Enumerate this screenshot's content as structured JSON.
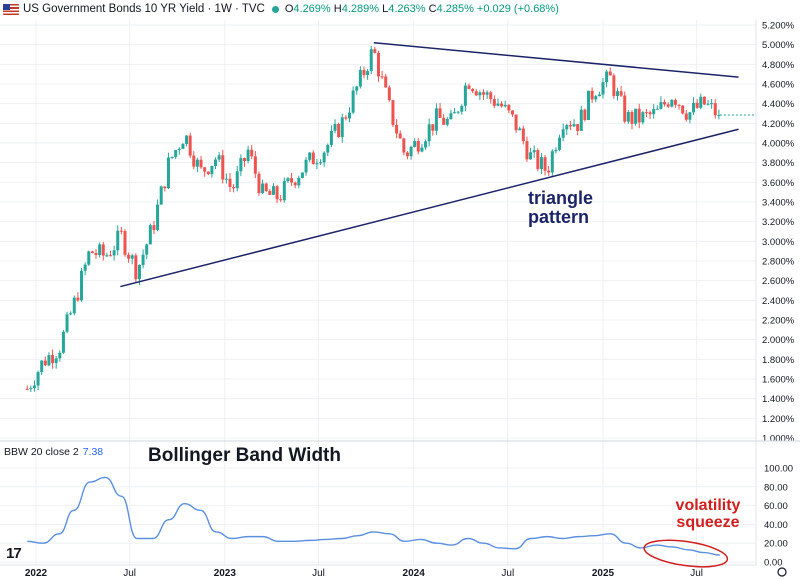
{
  "header": {
    "title": "US Government Bonds 10 YR Yield · 1W · TVC",
    "o_label": "O",
    "o_value": "4.269%",
    "h_label": "H",
    "h_value": "4.289%",
    "l_label": "L",
    "l_value": "4.263%",
    "c_label": "C",
    "c_value": "4.285%",
    "change": "+0.029 (+0.68%)",
    "flag_icon": "us-flag-icon"
  },
  "annotations": {
    "triangle_line1": "triangle",
    "triangle_line2": "pattern",
    "volatility_line1": "volatility",
    "volatility_line2": "squeeze",
    "bbw_title": "Bollinger Band Width"
  },
  "bbw_legend": {
    "label": "BBW 20 close 2",
    "value": "7.38"
  },
  "colors": {
    "up": "#26a69a",
    "down": "#ef5350",
    "trendline": "#1b2467",
    "bbw": "#5b8fe0",
    "squeeze": "#d01f1f",
    "grid": "#eef0f4"
  },
  "chart_data": [
    {
      "type": "candlestick",
      "title": "US Government Bonds 10 YR Yield · 1W · TVC",
      "y_unit": "%",
      "ylim": [
        1.0,
        5.2
      ],
      "y_ticks": [
        "5.200%",
        "5.000%",
        "4.800%",
        "4.600%",
        "4.400%",
        "4.200%",
        "4.000%",
        "3.800%",
        "3.600%",
        "3.400%",
        "3.200%",
        "3.000%",
        "2.800%",
        "2.600%",
        "2.400%",
        "2.200%",
        "2.000%",
        "1.800%",
        "1.600%",
        "1.400%",
        "1.200%",
        "1.000%"
      ],
      "x_ticks": [
        "2022",
        "Jul",
        "2023",
        "Jul",
        "2024",
        "Jul",
        "2025",
        "Jul"
      ],
      "grid": true,
      "close_path": [
        [
          "2021-12",
          1.5
        ],
        [
          "2022-01",
          1.78
        ],
        [
          "2022-02",
          1.92
        ],
        [
          "2022-03",
          2.35
        ],
        [
          "2022-04",
          2.9
        ],
        [
          "2022-05",
          2.85
        ],
        [
          "2022-06",
          3.05
        ],
        [
          "2022-07",
          2.7
        ],
        [
          "2022-08",
          3.15
        ],
        [
          "2022-09",
          3.8
        ],
        [
          "2022-10",
          4.1
        ],
        [
          "2022-11",
          3.7
        ],
        [
          "2022-12",
          3.85
        ],
        [
          "2023-01",
          3.52
        ],
        [
          "2023-02",
          3.92
        ],
        [
          "2023-03",
          3.48
        ],
        [
          "2023-04",
          3.45
        ],
        [
          "2023-05",
          3.65
        ],
        [
          "2023-06",
          3.82
        ],
        [
          "2023-07",
          3.95
        ],
        [
          "2023-08",
          4.2
        ],
        [
          "2023-09",
          4.58
        ],
        [
          "2023-10",
          4.95
        ],
        [
          "2023-11",
          4.35
        ],
        [
          "2023-12",
          3.88
        ],
        [
          "2024-01",
          4.05
        ],
        [
          "2024-02",
          4.25
        ],
        [
          "2024-03",
          4.2
        ],
        [
          "2024-04",
          4.65
        ],
        [
          "2024-05",
          4.5
        ],
        [
          "2024-06",
          4.4
        ],
        [
          "2024-07",
          4.2
        ],
        [
          "2024-08",
          3.85
        ],
        [
          "2024-09",
          3.72
        ],
        [
          "2024-10",
          4.25
        ],
        [
          "2024-11",
          4.2
        ],
        [
          "2024-12",
          4.55
        ],
        [
          "2025-01",
          4.65
        ],
        [
          "2025-02",
          4.25
        ],
        [
          "2025-03",
          4.25
        ],
        [
          "2025-04",
          4.3
        ],
        [
          "2025-05",
          4.5
        ],
        [
          "2025-06",
          4.3
        ],
        [
          "2025-07",
          4.4
        ],
        [
          "2025-08",
          4.28
        ]
      ],
      "trendlines": [
        {
          "name": "resistance",
          "points": [
            [
              "2023-10-16",
              5.02
            ],
            [
              "2025-09-20",
              4.67
            ]
          ]
        },
        {
          "name": "support",
          "points": [
            [
              "2022-06-13",
              2.54
            ],
            [
              "2025-09-20",
              4.14
            ]
          ]
        }
      ],
      "last": {
        "open": 4.269,
        "high": 4.289,
        "low": 4.263,
        "close": 4.285,
        "change": 0.029,
        "change_pct": 0.68
      }
    },
    {
      "type": "line",
      "legend": "BBW 20 close 2",
      "title": "Bollinger Band Width",
      "ylim": [
        0,
        100
      ],
      "y_ticks": [
        "100.00",
        "80.00",
        "60.00",
        "40.00",
        "20.00",
        "0.00"
      ],
      "last_value": 7.38,
      "points": [
        [
          "2021-12",
          22
        ],
        [
          "2022-01",
          20
        ],
        [
          "2022-02",
          30
        ],
        [
          "2022-03",
          55
        ],
        [
          "2022-04",
          85
        ],
        [
          "2022-05",
          90
        ],
        [
          "2022-06",
          70
        ],
        [
          "2022-07",
          25
        ],
        [
          "2022-08",
          25
        ],
        [
          "2022-09",
          45
        ],
        [
          "2022-10",
          62
        ],
        [
          "2022-11",
          55
        ],
        [
          "2022-12",
          32
        ],
        [
          "2023-01",
          25
        ],
        [
          "2023-02",
          27
        ],
        [
          "2023-03",
          27
        ],
        [
          "2023-04",
          22
        ],
        [
          "2023-05",
          22
        ],
        [
          "2023-06",
          23
        ],
        [
          "2023-07",
          24
        ],
        [
          "2023-08",
          25
        ],
        [
          "2023-09",
          28
        ],
        [
          "2023-10",
          32
        ],
        [
          "2023-11",
          30
        ],
        [
          "2023-12",
          22
        ],
        [
          "2024-01",
          24
        ],
        [
          "2024-02",
          20
        ],
        [
          "2024-03",
          18
        ],
        [
          "2024-04",
          25
        ],
        [
          "2024-05",
          20
        ],
        [
          "2024-06",
          15
        ],
        [
          "2024-07",
          14
        ],
        [
          "2024-08",
          25
        ],
        [
          "2024-09",
          27
        ],
        [
          "2024-10",
          25
        ],
        [
          "2024-11",
          27
        ],
        [
          "2024-12",
          28
        ],
        [
          "2025-01",
          30
        ],
        [
          "2025-02",
          20
        ],
        [
          "2025-03",
          15
        ],
        [
          "2025-04",
          18
        ],
        [
          "2025-05",
          16
        ],
        [
          "2025-06",
          13
        ],
        [
          "2025-07",
          10
        ],
        [
          "2025-08",
          7.38
        ]
      ]
    }
  ]
}
